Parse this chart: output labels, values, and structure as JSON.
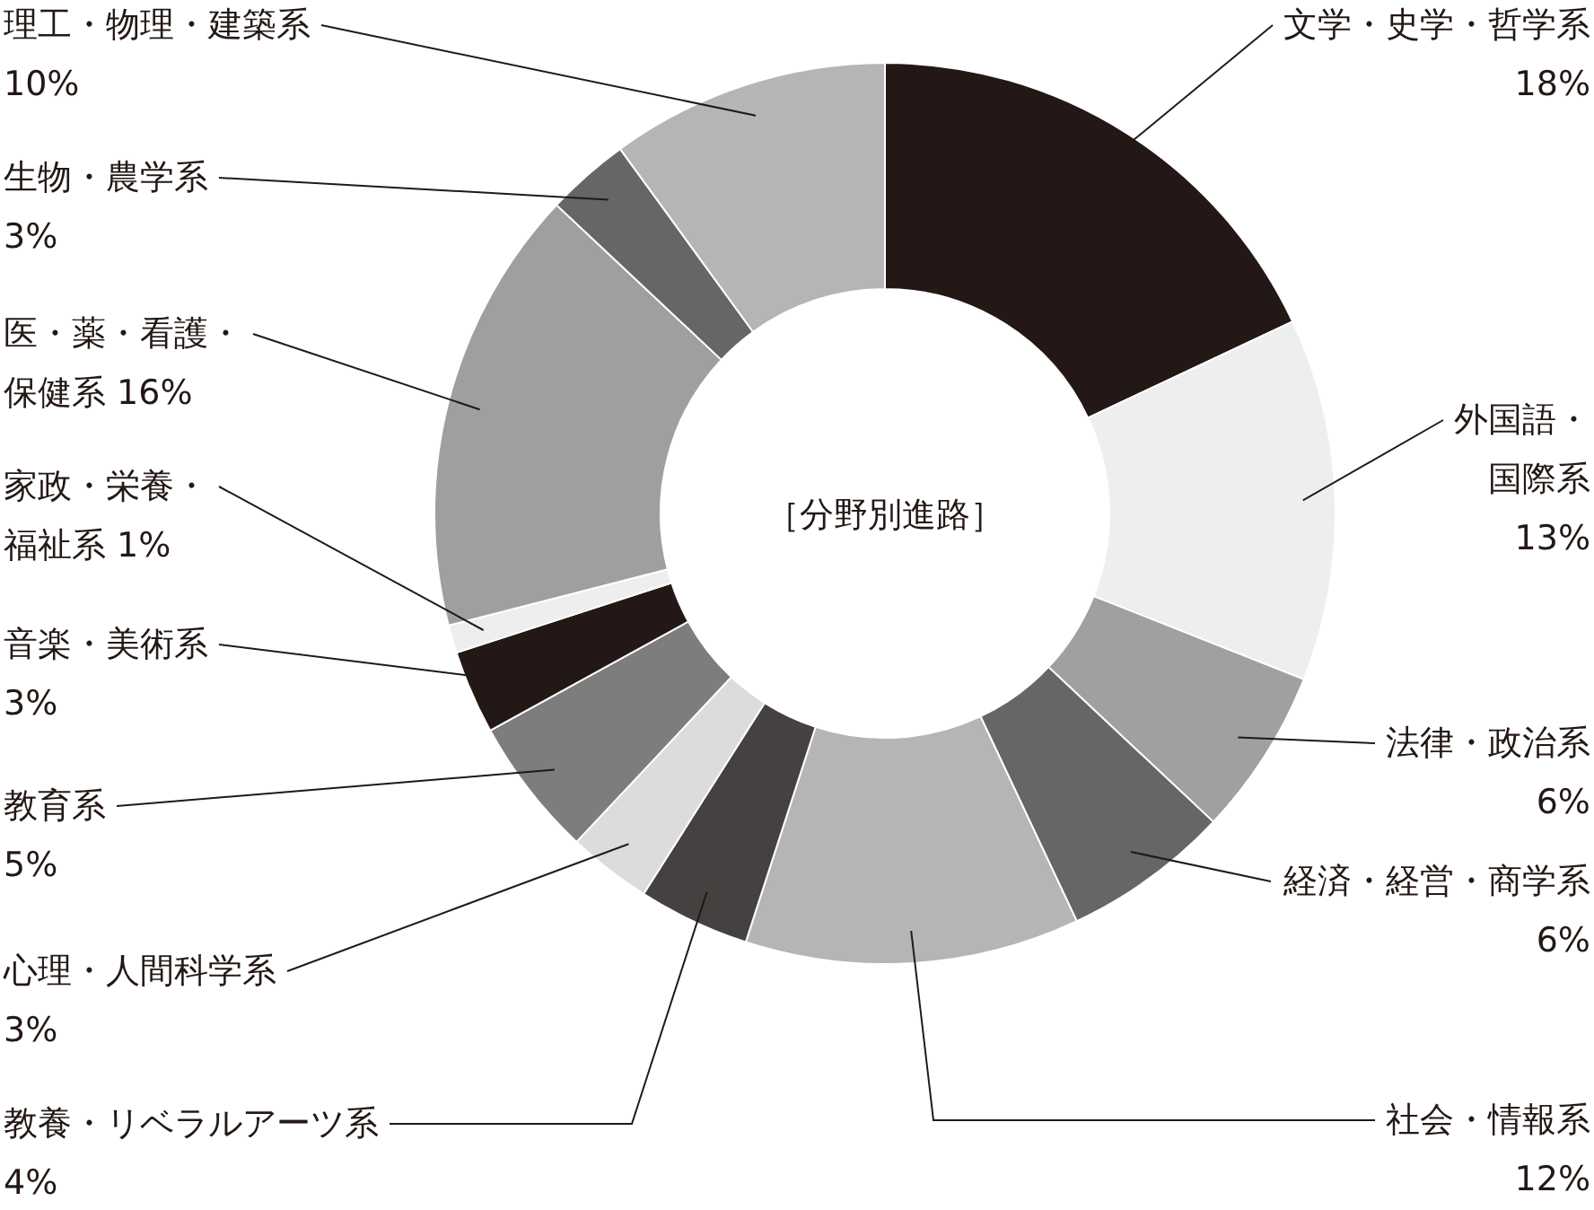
{
  "chart_data": {
    "type": "donut",
    "title": "［分野別進路］",
    "categories": [
      "文学・史学・哲学系",
      "外国語・国際系",
      "法律・政治系",
      "経済・経営・商学系",
      "社会・情報系",
      "教養・リベラルアーツ系",
      "心理・人間科学系",
      "教育系",
      "音楽・美術系",
      "家政・栄養・福祉系",
      "医・薬・看護・保健系",
      "生物・農学系",
      "理工・物理・建築系"
    ],
    "values": [
      18,
      13,
      6,
      6,
      12,
      4,
      3,
      5,
      3,
      1,
      16,
      3,
      10
    ],
    "value_labels": [
      "18%",
      "13%",
      "6%",
      "6%",
      "12%",
      "4%",
      "3%",
      "5%",
      "3%",
      "1%",
      "16%",
      "3%",
      "10%"
    ],
    "colors": [
      "#231815",
      "#eeeeee",
      "#a0a0a0",
      "#666666",
      "#b5b5b5",
      "#454141",
      "#dcdcdc",
      "#7d7d7d",
      "#231815",
      "#eeeeee",
      "#9f9f9f",
      "#666666",
      "#b5b5b5"
    ]
  }
}
